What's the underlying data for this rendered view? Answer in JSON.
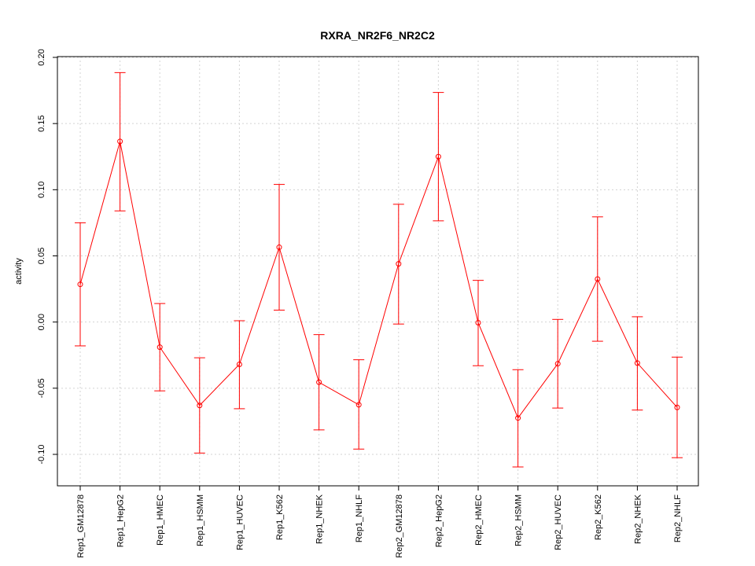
{
  "chart_data": {
    "type": "line",
    "title": "RXRA_NR2F6_NR2C2",
    "xlabel": "",
    "ylabel": "activity",
    "ylim": [
      -0.122,
      0.2
    ],
    "yticks": [
      -0.1,
      -0.05,
      0.0,
      0.05,
      0.1,
      0.15,
      0.2
    ],
    "ytick_labels": [
      "-0.10",
      "-0.05",
      "0.00",
      "0.05",
      "0.10",
      "0.15",
      "0.20"
    ],
    "grid": true,
    "color": "#ff0000",
    "categories": [
      "Rep1_GM12878",
      "Rep1_HepG2",
      "Rep1_HMEC",
      "Rep1_HSMM",
      "Rep1_HUVEC",
      "Rep1_K562",
      "Rep1_NHEK",
      "Rep1_NHLF",
      "Rep2_GM12878",
      "Rep2_HepG2",
      "Rep2_HMEC",
      "Rep2_HSMM",
      "Rep2_HUVEC",
      "Rep2_K562",
      "Rep2_NHEK",
      "Rep2_NHLF"
    ],
    "values": [
      0.0285,
      0.1365,
      -0.019,
      -0.063,
      -0.032,
      0.0565,
      -0.0455,
      -0.0625,
      0.044,
      0.125,
      -0.0005,
      -0.0725,
      -0.0315,
      0.0325,
      -0.031,
      -0.0645
    ],
    "upper": [
      0.075,
      0.1885,
      0.014,
      -0.027,
      0.001,
      0.104,
      -0.0095,
      -0.0285,
      0.089,
      0.1735,
      0.0315,
      -0.036,
      0.002,
      0.0795,
      0.004,
      -0.0265
    ],
    "lower": [
      -0.018,
      0.084,
      -0.052,
      -0.099,
      -0.0655,
      0.009,
      -0.0815,
      -0.096,
      -0.0015,
      0.0765,
      -0.033,
      -0.1095,
      -0.065,
      -0.0145,
      -0.0665,
      -0.1025
    ]
  }
}
